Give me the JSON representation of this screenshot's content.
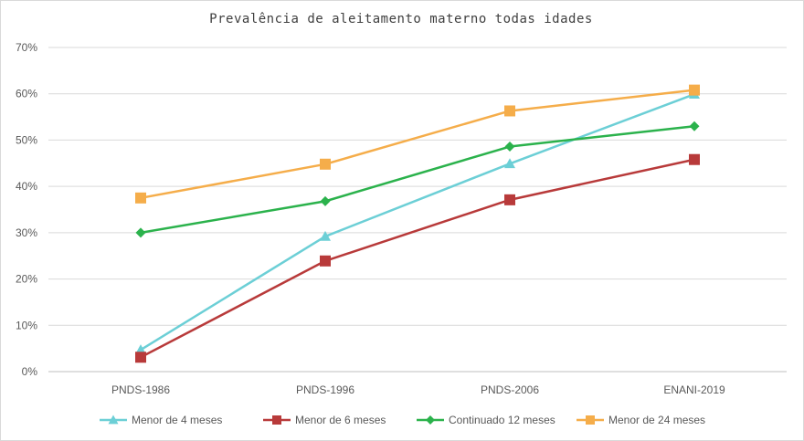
{
  "chart_data": {
    "type": "line",
    "title": "Prevalência de aleitamento materno todas idades",
    "xlabel": "",
    "ylabel": "",
    "categories": [
      "PNDS-1986",
      "PNDS-1996",
      "PNDS-2006",
      "ENANI-2019"
    ],
    "ylim": [
      0,
      70
    ],
    "yticks": [
      0,
      10,
      20,
      30,
      40,
      50,
      60,
      70
    ],
    "ytick_labels": [
      "0%",
      "10%",
      "20%",
      "30%",
      "40%",
      "50%",
      "60%",
      "70%"
    ],
    "grid": true,
    "legend_position": "bottom",
    "series": [
      {
        "name": "Menor de 4 meses",
        "values": [
          4.7,
          29.2,
          44.9,
          59.9
        ],
        "color": "#6ccfd6",
        "marker": "triangle"
      },
      {
        "name": "Menor de 6 meses",
        "values": [
          3.1,
          23.9,
          37.1,
          45.8
        ],
        "color": "#b83a3a",
        "marker": "square"
      },
      {
        "name": "Continuado 12 meses",
        "values": [
          30.0,
          36.8,
          48.6,
          53.0
        ],
        "color": "#2bb24c",
        "marker": "diamond"
      },
      {
        "name": "Menor de 24 meses",
        "values": [
          37.5,
          44.8,
          56.3,
          60.8
        ],
        "color": "#f5ad4a",
        "marker": "square"
      }
    ]
  }
}
